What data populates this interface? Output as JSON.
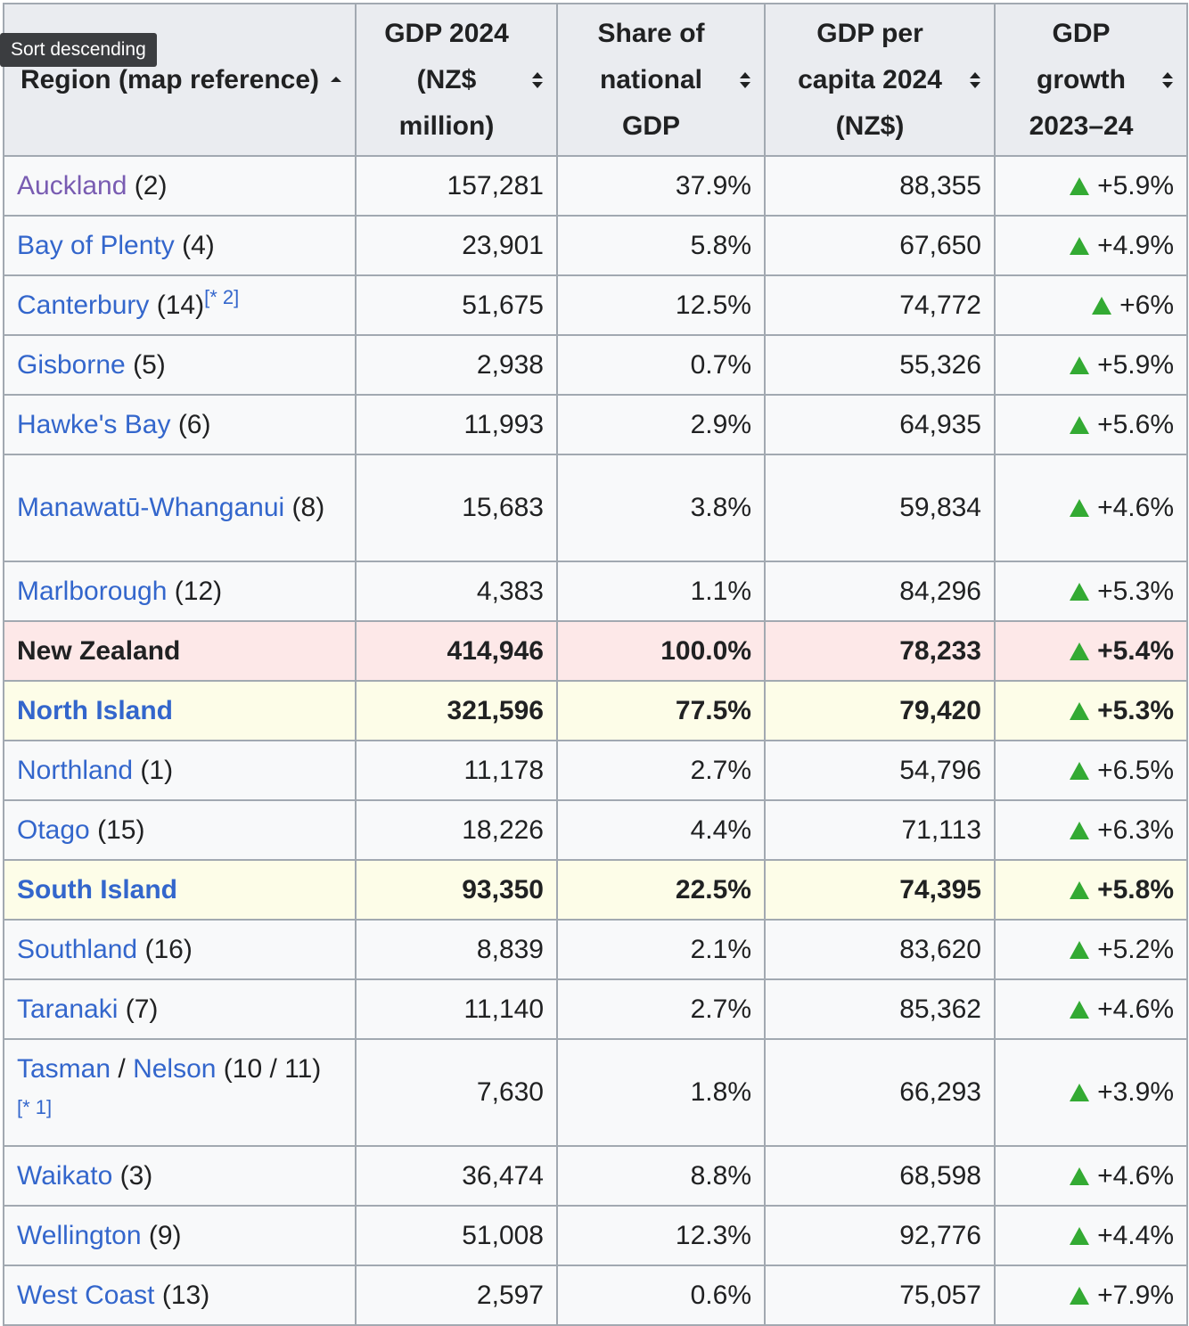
{
  "tooltip": "Sort descending",
  "headers": [
    {
      "label": "Region (map reference)"
    },
    {
      "label": "GDP 2024 (NZ$ million)"
    },
    {
      "label": "Share of national GDP"
    },
    {
      "label": "GDP per capita 2024 (NZ$)"
    },
    {
      "label": "GDP growth 2023–24"
    }
  ],
  "rows": [
    {
      "name": "Auckland",
      "ref": "(2)",
      "note": "",
      "gdp": "157,281",
      "share": "37.9%",
      "per_capita": "88,355",
      "growth": "+5.9%"
    },
    {
      "name": "Bay of Plenty",
      "ref": "(4)",
      "note": "",
      "gdp": "23,901",
      "share": "5.8%",
      "per_capita": "67,650",
      "growth": "+4.9%"
    },
    {
      "name": "Canterbury",
      "ref": "(14)",
      "note": "[* 2]",
      "gdp": "51,675",
      "share": "12.5%",
      "per_capita": "74,772",
      "growth": "+6%"
    },
    {
      "name": "Gisborne",
      "ref": "(5)",
      "note": "",
      "gdp": "2,938",
      "share": "0.7%",
      "per_capita": "55,326",
      "growth": "+5.9%"
    },
    {
      "name": "Hawke's Bay",
      "ref": "(6)",
      "note": "",
      "gdp": "11,993",
      "share": "2.9%",
      "per_capita": "64,935",
      "growth": "+5.6%"
    },
    {
      "name": "Manawatū-Whanganui",
      "ref": "(8)",
      "note": "",
      "gdp": "15,683",
      "share": "3.8%",
      "per_capita": "59,834",
      "growth": "+4.6%"
    },
    {
      "name": "Marlborough",
      "ref": "(12)",
      "note": "",
      "gdp": "4,383",
      "share": "1.1%",
      "per_capita": "84,296",
      "growth": "+5.3%"
    },
    {
      "name": "New Zealand",
      "ref": "",
      "note": "",
      "gdp": "414,946",
      "share": "100.0%",
      "per_capita": "78,233",
      "growth": "+5.4%"
    },
    {
      "name": "North Island",
      "ref": "",
      "note": "",
      "gdp": "321,596",
      "share": "77.5%",
      "per_capita": "79,420",
      "growth": "+5.3%"
    },
    {
      "name": "Northland",
      "ref": "(1)",
      "note": "",
      "gdp": "11,178",
      "share": "2.7%",
      "per_capita": "54,796",
      "growth": "+6.5%"
    },
    {
      "name": "Otago",
      "ref": "(15)",
      "note": "",
      "gdp": "18,226",
      "share": "4.4%",
      "per_capita": "71,113",
      "growth": "+6.3%"
    },
    {
      "name": "South Island",
      "ref": "",
      "note": "",
      "gdp": "93,350",
      "share": "22.5%",
      "per_capita": "74,395",
      "growth": "+5.8%"
    },
    {
      "name": "Southland",
      "ref": "(16)",
      "note": "",
      "gdp": "8,839",
      "share": "2.1%",
      "per_capita": "83,620",
      "growth": "+5.2%"
    },
    {
      "name": "Taranaki",
      "ref": "(7)",
      "note": "",
      "gdp": "11,140",
      "share": "2.7%",
      "per_capita": "85,362",
      "growth": "+4.6%"
    },
    {
      "name": "Tasman",
      "name2": "Nelson",
      "sep": " / ",
      "ref": "(10 / 11)",
      "note": "[* 1]",
      "gdp": "7,630",
      "share": "1.8%",
      "per_capita": "66,293",
      "growth": "+3.9%"
    },
    {
      "name": "Waikato",
      "ref": "(3)",
      "note": "",
      "gdp": "36,474",
      "share": "8.8%",
      "per_capita": "68,598",
      "growth": "+4.6%"
    },
    {
      "name": "Wellington",
      "ref": "(9)",
      "note": "",
      "gdp": "51,008",
      "share": "12.3%",
      "per_capita": "92,776",
      "growth": "+4.4%"
    },
    {
      "name": "West Coast",
      "ref": "(13)",
      "note": "",
      "gdp": "2,597",
      "share": "0.6%",
      "per_capita": "75,057",
      "growth": "+7.9%"
    }
  ],
  "colors": {
    "link": "#3366cc",
    "visited": "#795cb2",
    "up_arrow": "#33aa33",
    "total_row_bg": "#fde8e8",
    "island_row_bg": "#fdfde8"
  }
}
